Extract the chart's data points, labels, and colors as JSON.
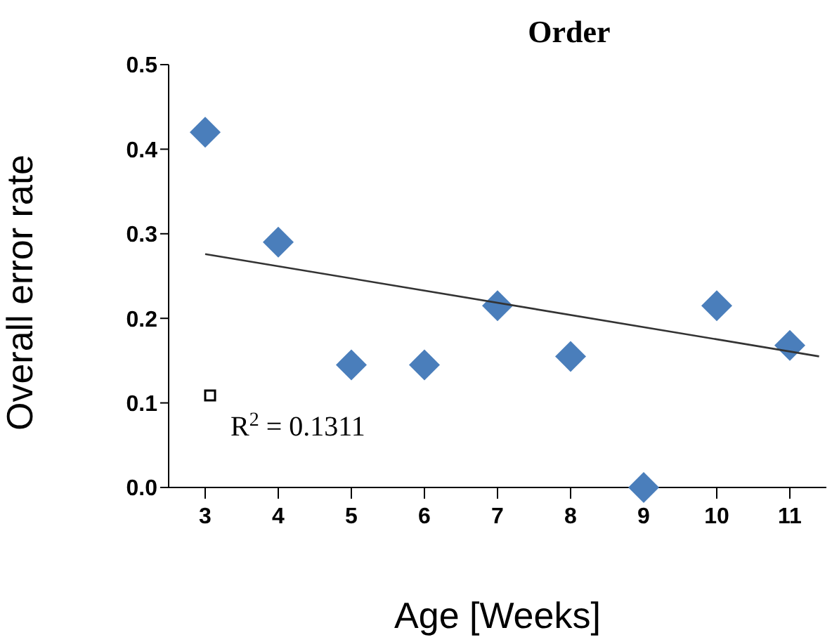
{
  "chart_data": {
    "type": "scatter",
    "title": "Order",
    "xlabel": "Age [Weeks]",
    "ylabel": "Overall error rate",
    "xlim": [
      2.5,
      11.5
    ],
    "xticks": [
      3,
      4,
      5,
      6,
      7,
      8,
      9,
      10,
      11
    ],
    "ylim": [
      0,
      0.5
    ],
    "yticks": [
      {
        "value": 0,
        "label": "0.0"
      },
      0.1,
      0.2,
      0.3,
      0.4,
      0.5
    ],
    "series": [
      {
        "marker": "diamond",
        "color": "#4a7ebb",
        "x": [
          3,
          4,
          5,
          6,
          7,
          8,
          9,
          10,
          11
        ],
        "values": [
          0.42,
          0.29,
          0.145,
          0.145,
          0.215,
          0.155,
          0,
          0.215,
          0.168
        ]
      },
      {
        "type": "line",
        "marker": "none",
        "color": "#333333",
        "x": [
          3,
          11.4
        ],
        "values": [
          0.276,
          0.155
        ]
      }
    ],
    "annotations": [
      "R$^{2}$ = 0.1311"
    ]
  }
}
